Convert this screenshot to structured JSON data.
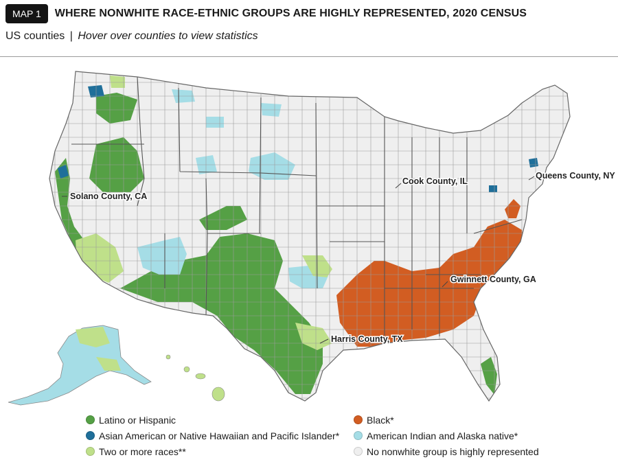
{
  "header": {
    "badge": "MAP 1",
    "title": "WHERE NONWHITE RACE-ETHNIC GROUPS ARE HIGHLY REPRESENTED, 2020 CENSUS"
  },
  "subtitle": {
    "scope": "US counties",
    "separator": "|",
    "hint": "Hover over counties to view statistics"
  },
  "colors": {
    "latino": "#55a045",
    "asian": "#1f6f9a",
    "two_or_more": "#bfe08a",
    "black": "#d25d22",
    "american_indian": "#a5dde6",
    "none": "#efefef",
    "border": "#9c9c9c"
  },
  "callouts": {
    "solano": "Solano County, CA",
    "cook": "Cook County, IL",
    "queens": "Queens County, NY",
    "gwinnett": "Gwinnett County, GA",
    "harris": "Harris County, TX"
  },
  "legend": {
    "latino": "Latino or Hispanic",
    "asian": "Asian American or Native Hawaiian and Pacific Islander*",
    "two_or_more": "Two or more races**",
    "black": "Black*",
    "american_indian": "American Indian and Alaska native*",
    "none": "No nonwhite group is highly represented"
  }
}
